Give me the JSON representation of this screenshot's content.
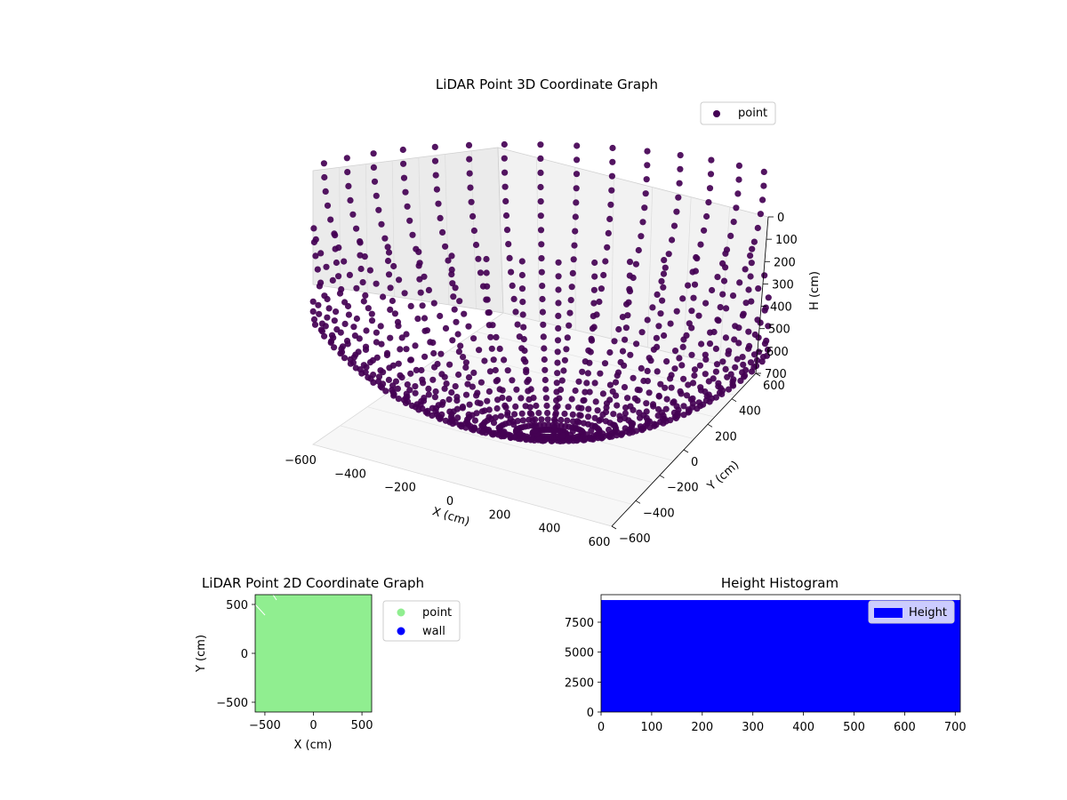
{
  "colors": {
    "point3d": "#440154",
    "point2d": "#90ee90",
    "wall": "#0000ff",
    "histogram": "#0000ff"
  },
  "chart_data": [
    {
      "type": "scatter",
      "projection": "3d",
      "title": "LiDAR Point 3D Coordinate Graph",
      "xlabel": "X (cm)",
      "ylabel": "Y (cm)",
      "zlabel": "H (cm)",
      "x_ticks": [
        "−600",
        "−400",
        "−200",
        "0",
        "200",
        "400",
        "600"
      ],
      "y_ticks": [
        "−600",
        "−400",
        "−200",
        "0",
        "200",
        "400",
        "600"
      ],
      "z_ticks": [
        "0",
        "100",
        "200",
        "300",
        "400",
        "500",
        "600",
        "700"
      ],
      "xlim": [
        -600,
        600
      ],
      "ylim": [
        -600,
        600
      ],
      "zlim": [
        0,
        700
      ],
      "z_inverted": true,
      "legend": {
        "placement": "top-right",
        "entries": [
          "point"
        ]
      },
      "series": [
        {
          "name": "point",
          "description": "hemispherical LiDAR sweep: meridian arcs from the origin outward to radius ~650 cm, height 0–700 cm"
        }
      ]
    },
    {
      "type": "scatter",
      "title": "LiDAR Point 2D Coordinate Graph",
      "xlabel": "X (cm)",
      "ylabel": "Y (cm)",
      "x_ticks": [
        "−500",
        "0",
        "500"
      ],
      "y_ticks": [
        "−500",
        "0",
        "500"
      ],
      "xlim": [
        -600,
        600
      ],
      "ylim": [
        -600,
        600
      ],
      "legend": {
        "placement": "outside-right",
        "entries": [
          "point",
          "wall"
        ]
      },
      "series": [
        {
          "name": "point",
          "description": "points densely fill the whole square"
        },
        {
          "name": "wall",
          "description": "no visible wall points"
        }
      ]
    },
    {
      "type": "bar",
      "subtype": "histogram",
      "title": "Height Histogram",
      "x_ticks": [
        "0",
        "100",
        "200",
        "300",
        "400",
        "500",
        "600",
        "700"
      ],
      "y_ticks": [
        "0",
        "2500",
        "5000",
        "7500"
      ],
      "xlim": [
        0,
        710
      ],
      "ylim": [
        0,
        9800
      ],
      "legend": {
        "placement": "top-right",
        "entries": [
          "Height"
        ]
      },
      "series": [
        {
          "name": "Height",
          "bin_range": [
            0,
            710
          ],
          "count": 9350
        }
      ]
    }
  ]
}
